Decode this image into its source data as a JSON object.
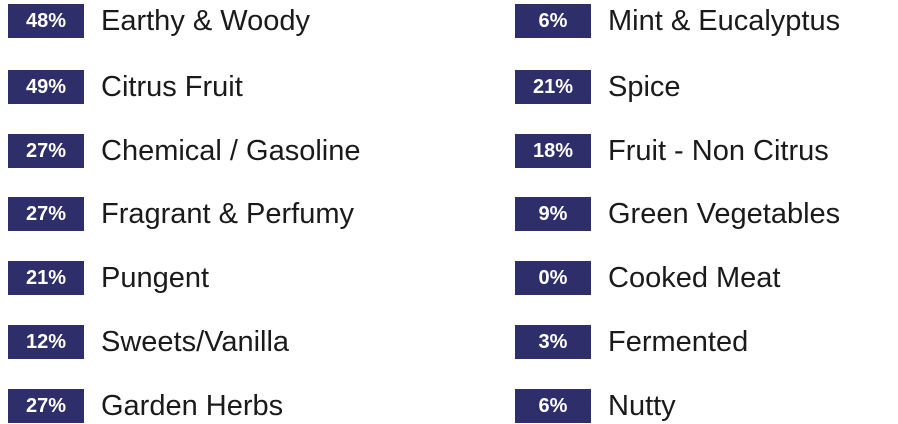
{
  "columns": [
    {
      "items": [
        {
          "badge": "48%",
          "label": "Earthy & Woody"
        },
        {
          "badge": "49%",
          "label": "Citrus Fruit"
        },
        {
          "badge": "27%",
          "label": "Chemical / Gasoline"
        },
        {
          "badge": "27%",
          "label": "Fragrant & Perfumy"
        },
        {
          "badge": "21%",
          "label": "Pungent"
        },
        {
          "badge": "12%",
          "label": "Sweets/Vanilla"
        },
        {
          "badge": "27%",
          "label": "Garden Herbs"
        }
      ]
    },
    {
      "items": [
        {
          "badge": "6%",
          "label": "Mint & Eucalyptus"
        },
        {
          "badge": "21%",
          "label": "Spice"
        },
        {
          "badge": "18%",
          "label": "Fruit - Non Citrus"
        },
        {
          "badge": "9%",
          "label": "Green Vegetables"
        },
        {
          "badge": "0%",
          "label": "Cooked Meat"
        },
        {
          "badge": "3%",
          "label": "Fermented"
        },
        {
          "badge": "6%",
          "label": "Nutty"
        }
      ]
    }
  ]
}
